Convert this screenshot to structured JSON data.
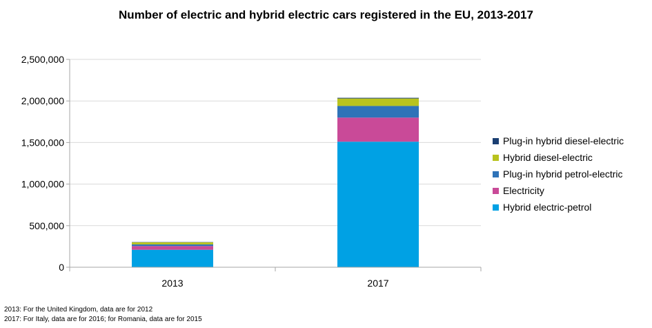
{
  "chart_data": {
    "type": "bar",
    "stacked": true,
    "title": "Number of electric and hybrid electric cars registered in the EU, 2013-2017",
    "categories": [
      "2013",
      "2017"
    ],
    "ylim": [
      0,
      2500000
    ],
    "yticks": [
      0,
      500000,
      1000000,
      1500000,
      2000000,
      2500000
    ],
    "ytick_labels": [
      "0",
      "500,000",
      "1,000,000",
      "1,500,000",
      "2,000,000",
      "2,500,000"
    ],
    "grid": true,
    "legend_position": "right",
    "series": [
      {
        "name": "Hybrid electric-petrol",
        "color": "#00a1e4",
        "values": [
          210000,
          1510000
        ]
      },
      {
        "name": "Electricity",
        "color": "#c94a98",
        "values": [
          45000,
          290000
        ]
      },
      {
        "name": "Plug-in hybrid petrol-electric",
        "color": "#2f73b8",
        "values": [
          20000,
          140000
        ]
      },
      {
        "name": "Hybrid diesel-electric",
        "color": "#b9c31e",
        "values": [
          25000,
          90000
        ]
      },
      {
        "name": "Plug-in hybrid diesel-electric",
        "color": "#1b3f72",
        "values": [
          3000,
          8000
        ]
      }
    ]
  },
  "footnotes": [
    "2013: For the United Kingdom, data are for 2012",
    "2017: For Italy, data are for 2016;  for Romania, data are for 2015"
  ]
}
